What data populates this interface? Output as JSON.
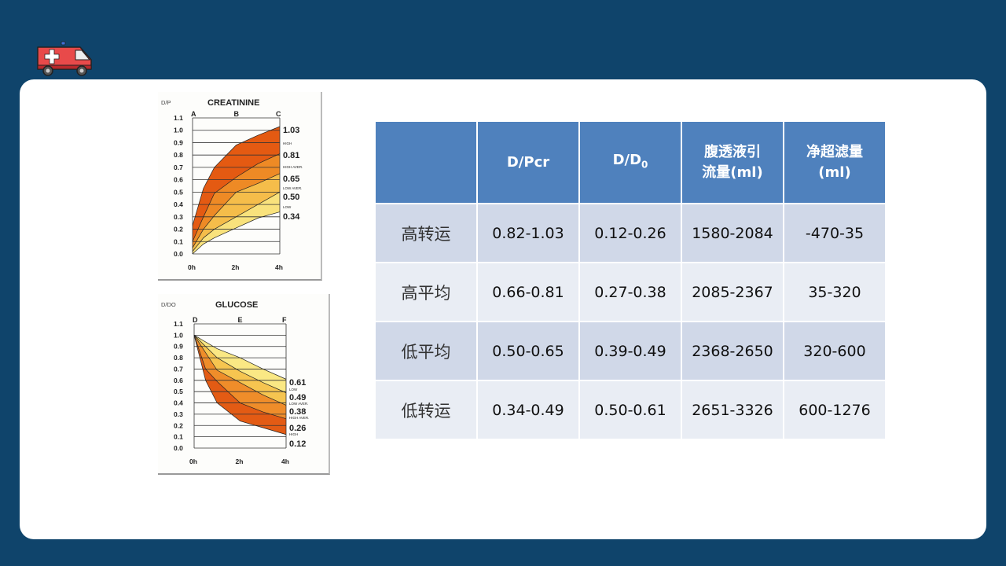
{
  "logo": {
    "icon": "ambulance-icon",
    "colors": {
      "body": "#e84a4a",
      "cross": "#ffffff",
      "light": "#3b6fd8"
    }
  },
  "colors": {
    "background": "#0f446b",
    "card": "#ffffff",
    "header": "#4f81bd",
    "row_odd": "#d0d8e8",
    "row_even": "#e9edf4"
  },
  "table": {
    "headers": {
      "blank": "",
      "dpcr": "D/Pcr",
      "dd0_main": "D/D",
      "dd0_sub": "0",
      "drain_line1": "腹透液引",
      "drain_line2": "流量(ml)",
      "uf_line1": "净超滤量",
      "uf_line2": "(ml)"
    },
    "rows": [
      {
        "label": "高转运",
        "dpcr": "0.82-1.03",
        "dd0": "0.12-0.26",
        "drain": "1580-2084",
        "uf": "-470-35"
      },
      {
        "label": "高平均",
        "dpcr": "0.66-0.81",
        "dd0": "0.27-0.38",
        "drain": "2085-2367",
        "uf": "35-320"
      },
      {
        "label": "低平均",
        "dpcr": "0.50-0.65",
        "dd0": "0.39-0.49",
        "drain": "2368-2650",
        "uf": "320-600"
      },
      {
        "label": "低转运",
        "dpcr": "0.34-0.49",
        "dd0": "0.50-0.61",
        "drain": "2651-3326",
        "uf": "600-1276"
      }
    ]
  },
  "chart_data": [
    {
      "type": "area",
      "title": "CREATININE",
      "ylabel": "D/P",
      "xlabel": "",
      "x": [
        "0h",
        "2h",
        "4h"
      ],
      "x_markers": [
        "A",
        "B",
        "C"
      ],
      "yticks": [
        "0.0",
        "0.1",
        "0.2",
        "0.3",
        "0.4",
        "0.5",
        "0.6",
        "0.7",
        "0.8",
        "0.9",
        "1.0",
        "1.1"
      ],
      "ylim": [
        0,
        1.1
      ],
      "grid": true,
      "end_labels": [
        "1.03",
        "0.81",
        "0.65",
        "0.50",
        "0.34"
      ],
      "band_labels": [
        "HIGH",
        "HIGH AVER.",
        "LOW AVER.",
        "LOW"
      ],
      "series": [
        {
          "name": "upper bound",
          "x_hours": [
            0,
            0.5,
            1,
            2,
            3,
            4
          ],
          "values": [
            0.23,
            0.53,
            0.7,
            0.88,
            0.96,
            1.03
          ]
        },
        {
          "name": "high / high aver.",
          "x_hours": [
            0,
            0.5,
            1,
            2,
            3,
            4
          ],
          "values": [
            0.1,
            0.3,
            0.49,
            0.62,
            0.73,
            0.81
          ]
        },
        {
          "name": "high aver. / low aver.",
          "x_hours": [
            0,
            0.5,
            1,
            2,
            3,
            4
          ],
          "values": [
            0.05,
            0.2,
            0.31,
            0.5,
            0.57,
            0.65
          ]
        },
        {
          "name": "low aver. / low",
          "x_hours": [
            0,
            0.5,
            1,
            2,
            3,
            4
          ],
          "values": [
            0.02,
            0.13,
            0.2,
            0.3,
            0.4,
            0.5
          ]
        },
        {
          "name": "lower bound",
          "x_hours": [
            0,
            0.5,
            1,
            2,
            3,
            4
          ],
          "values": [
            0.0,
            0.08,
            0.13,
            0.21,
            0.29,
            0.34
          ]
        }
      ]
    },
    {
      "type": "area",
      "title": "GLUCOSE",
      "ylabel": "D/DO",
      "xlabel": "",
      "x": [
        "0h",
        "2h",
        "4h"
      ],
      "x_markers": [
        "D",
        "E",
        "F"
      ],
      "yticks": [
        "0.0",
        "0.1",
        "0.2",
        "0.3",
        "0.4",
        "0.5",
        "0.6",
        "0.7",
        "0.8",
        "0.9",
        "1.0",
        "1.1"
      ],
      "ylim": [
        0,
        1.1
      ],
      "grid": true,
      "end_labels": [
        "0.61",
        "0.49",
        "0.38",
        "0.26",
        "0.12"
      ],
      "band_labels": [
        "LOW",
        "LOW AVER.",
        "HIGH AVER.",
        "HIGH"
      ],
      "series": [
        {
          "name": "upper bound",
          "x_hours": [
            0,
            1,
            2,
            3,
            4
          ],
          "values": [
            1.0,
            0.88,
            0.8,
            0.7,
            0.61
          ]
        },
        {
          "name": "low / low aver.",
          "x_hours": [
            0,
            1,
            2,
            3,
            4
          ],
          "values": [
            1.0,
            0.8,
            0.68,
            0.58,
            0.49
          ]
        },
        {
          "name": "low aver. / high aver.",
          "x_hours": [
            0,
            1,
            2,
            3,
            4
          ],
          "values": [
            1.0,
            0.69,
            0.58,
            0.47,
            0.38
          ]
        },
        {
          "name": "high aver. / high",
          "x_hours": [
            0,
            0.5,
            1,
            2,
            3,
            4
          ],
          "values": [
            1.0,
            0.7,
            0.59,
            0.4,
            0.32,
            0.26
          ]
        },
        {
          "name": "lower bound",
          "x_hours": [
            0,
            0.5,
            1,
            2,
            3,
            4
          ],
          "values": [
            1.0,
            0.6,
            0.4,
            0.24,
            0.18,
            0.12
          ]
        }
      ]
    }
  ]
}
